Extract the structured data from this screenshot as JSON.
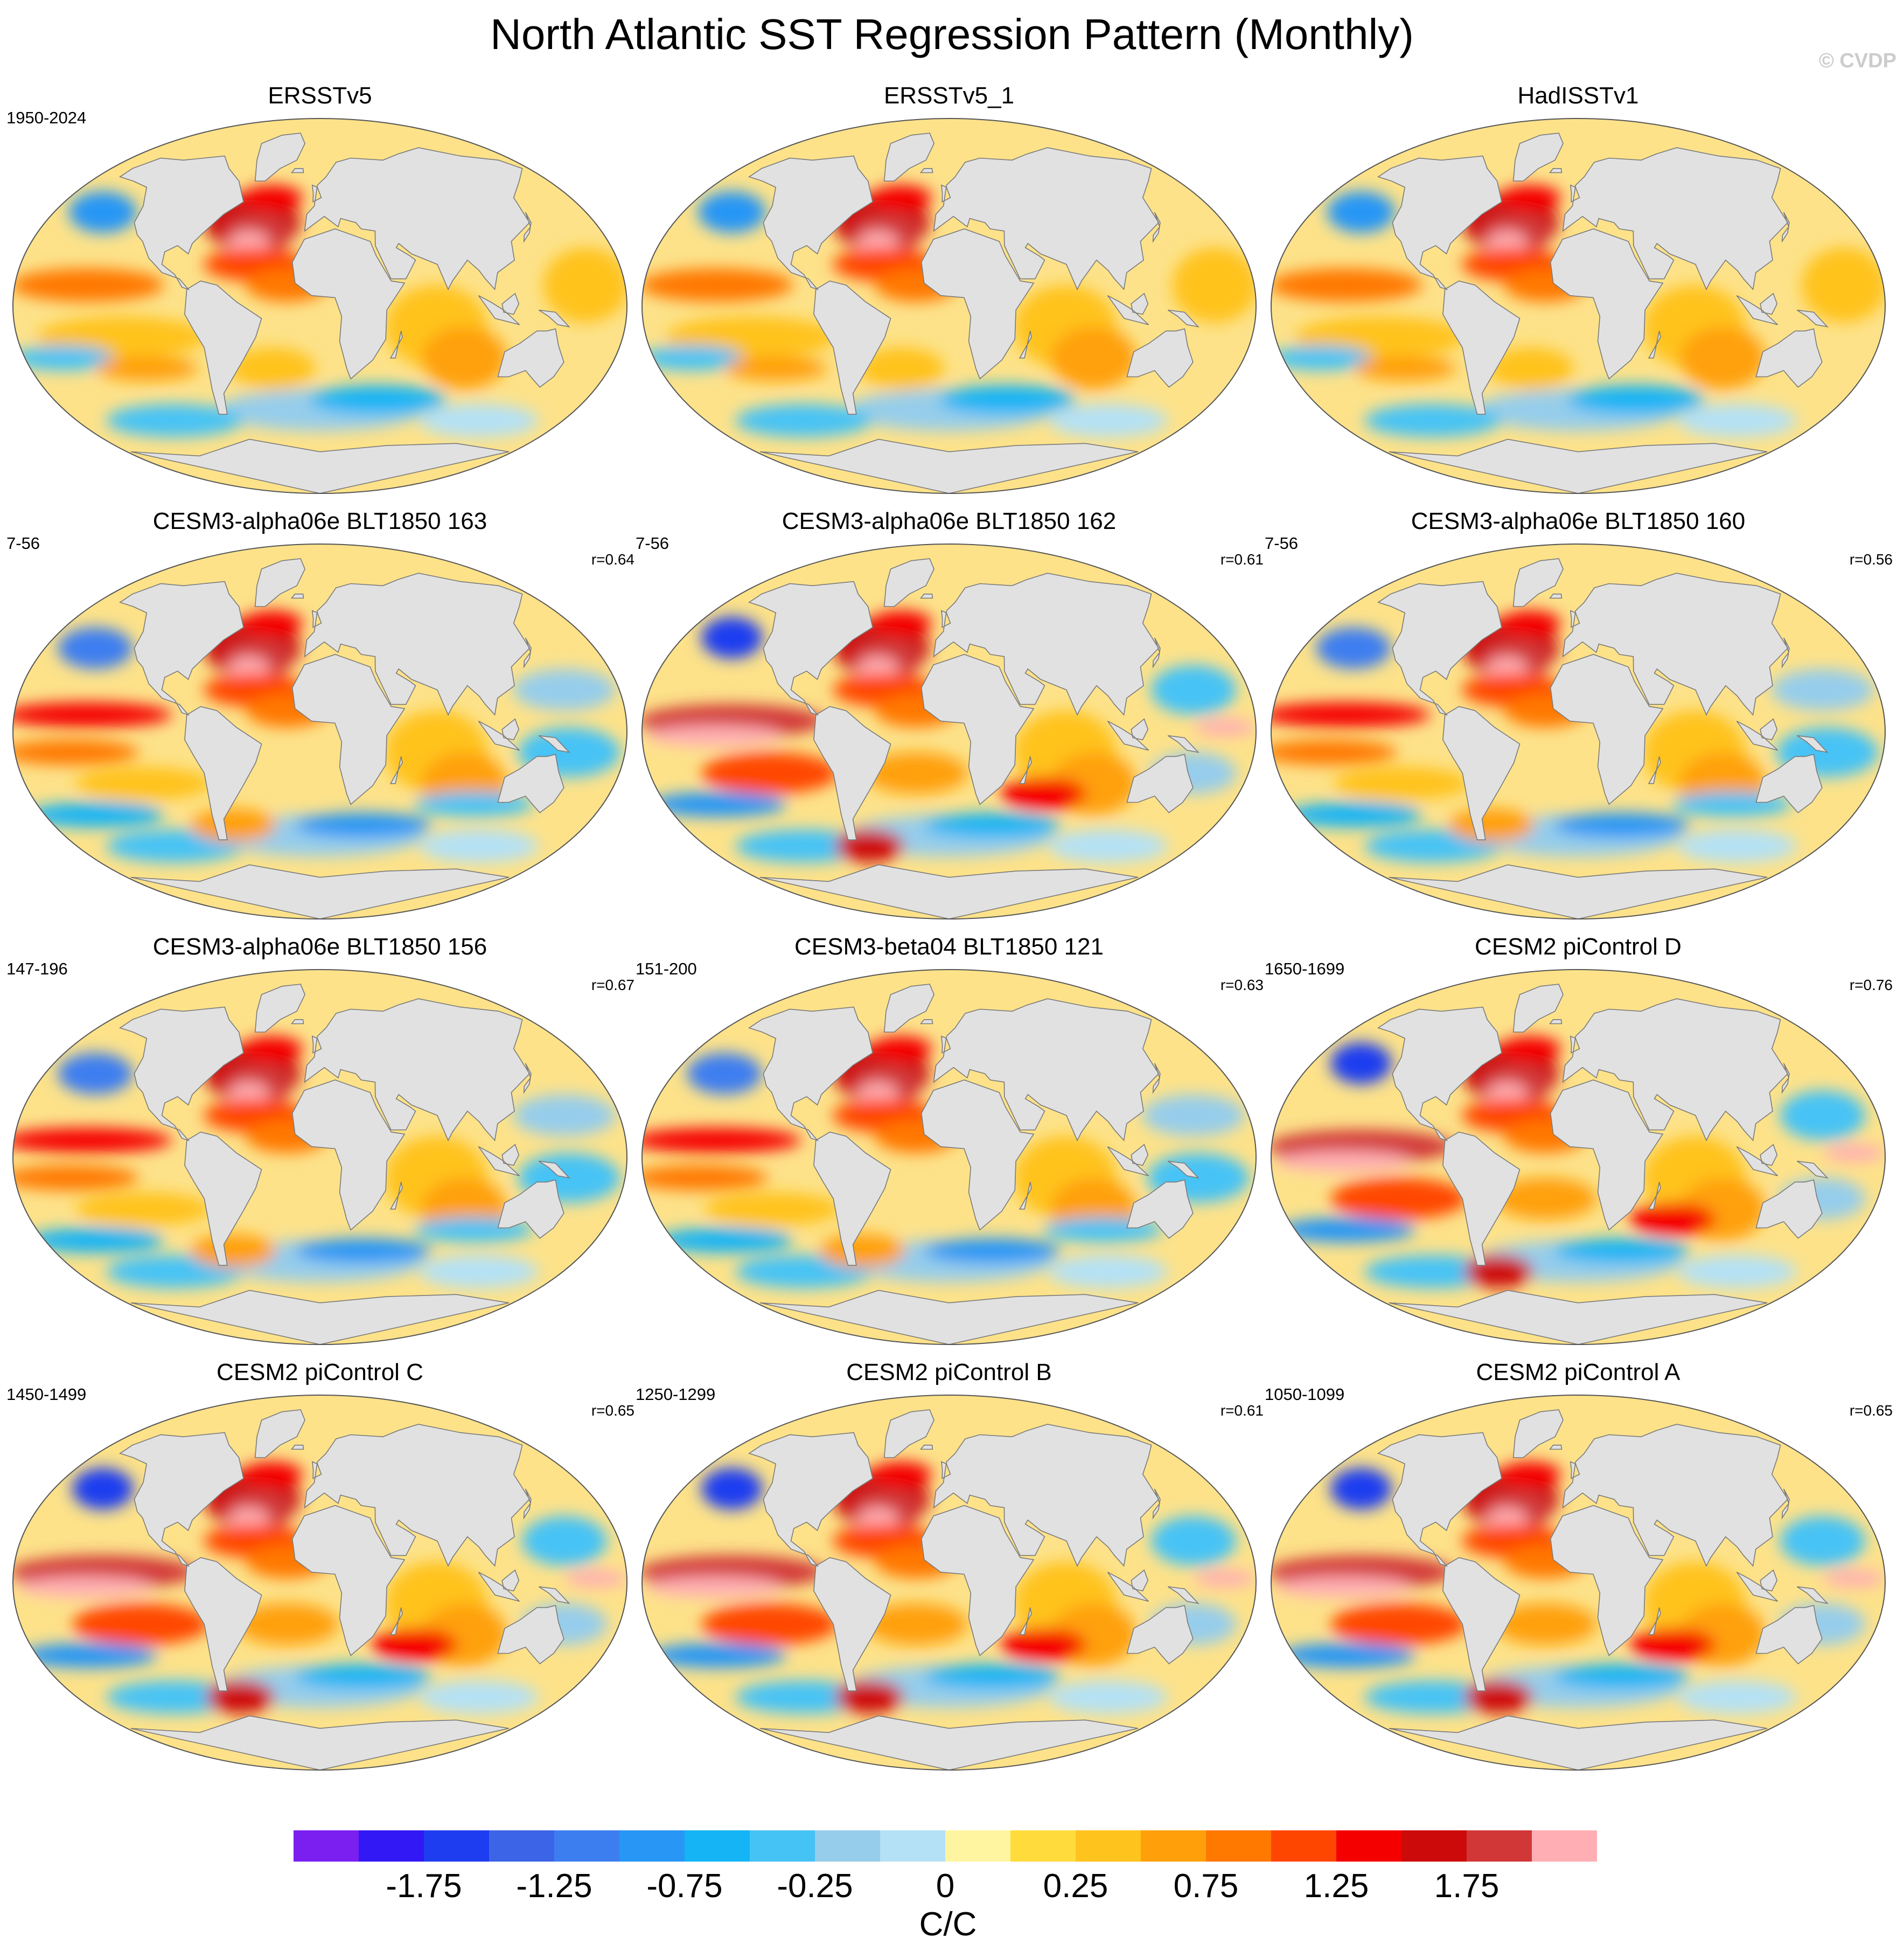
{
  "title": "North Atlantic SST Regression Pattern (Monthly)",
  "watermark": "© CVDP",
  "panels": [
    {
      "title": "ERSSTv5",
      "period": "1950-2024",
      "corr": "",
      "style": "obs"
    },
    {
      "title": "ERSSTv5_1",
      "period": "",
      "corr": "",
      "style": "obs"
    },
    {
      "title": "HadISSTv1",
      "period": "",
      "corr": "",
      "style": "obs"
    },
    {
      "title": "CESM3-alpha06e BLT1850 163",
      "period": "7-56",
      "corr": "r=0.64",
      "style": "mixed"
    },
    {
      "title": "CESM3-alpha06e BLT1850 162",
      "period": "7-56",
      "corr": "r=0.61",
      "style": "warm"
    },
    {
      "title": "CESM3-alpha06e BLT1850 160",
      "period": "7-56",
      "corr": "r=0.56",
      "style": "mixed"
    },
    {
      "title": "CESM3-alpha06e BLT1850 156",
      "period": "147-196",
      "corr": "r=0.67",
      "style": "mixed"
    },
    {
      "title": "CESM3-beta04 BLT1850 121",
      "period": "151-200",
      "corr": "r=0.63",
      "style": "mixed"
    },
    {
      "title": "CESM2 piControl D",
      "period": "1650-1699",
      "corr": "r=0.76",
      "style": "warm"
    },
    {
      "title": "CESM2 piControl C",
      "period": "1450-1499",
      "corr": "r=0.65",
      "style": "warm"
    },
    {
      "title": "CESM2 piControl B",
      "period": "1250-1299",
      "corr": "r=0.61",
      "style": "warm"
    },
    {
      "title": "CESM2 piControl A",
      "period": "1050-1099",
      "corr": "r=0.65",
      "style": "warm"
    }
  ],
  "colorbar": {
    "units": "C/C",
    "labels": [
      "-1.75",
      "-1.25",
      "-0.75",
      "-0.25",
      "0",
      "0.25",
      "0.75",
      "1.25",
      "1.75"
    ],
    "colors": [
      "#7b1ff0",
      "#3218f5",
      "#1e3cf0",
      "#3c64e6",
      "#3c7ef0",
      "#2896f5",
      "#14b4f5",
      "#46c3f5",
      "#96cdeb",
      "#b4e1f5",
      "#fff5a0",
      "#ffdc3c",
      "#ffc31e",
      "#ffa00a",
      "#ff7800",
      "#ff4600",
      "#f50000",
      "#cd0a0a",
      "#d23737",
      "#ffafb4"
    ]
  },
  "map_colors": {
    "land": "#e1e1e1",
    "coast": "#7a7a7a",
    "ocean_background": "#fde28a"
  }
}
